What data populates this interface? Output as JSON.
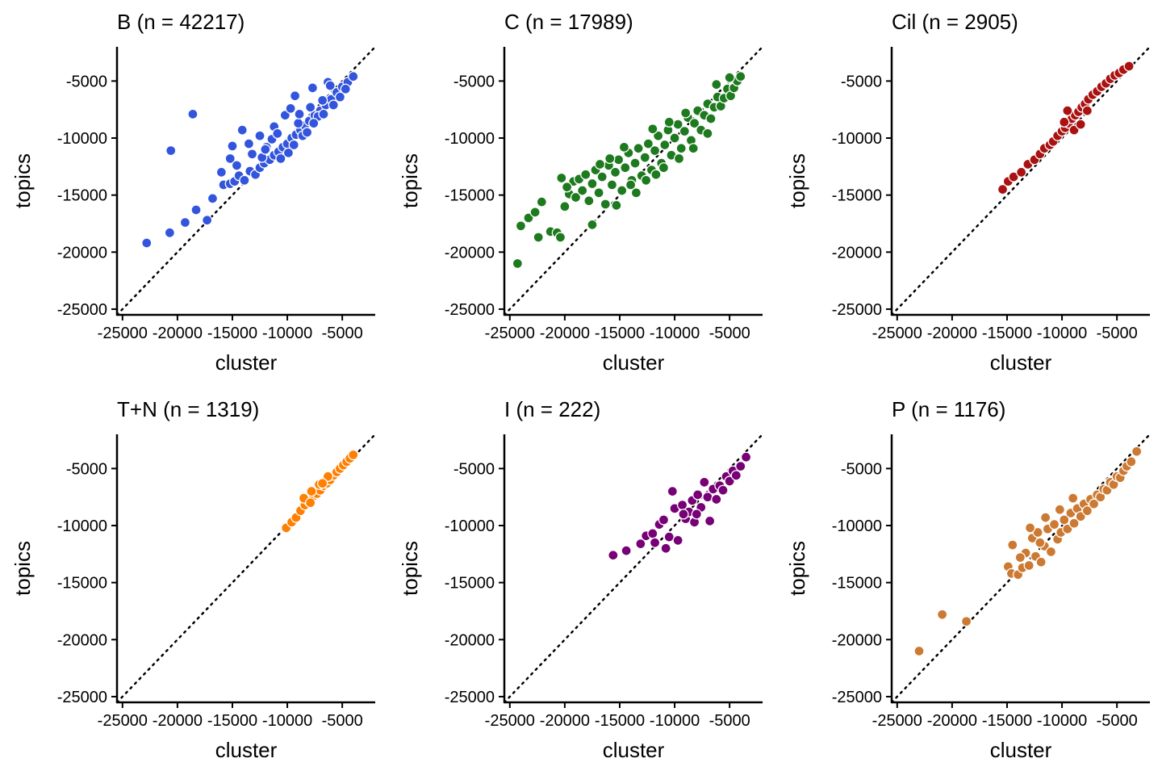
{
  "figure": {
    "background": "#ffffff",
    "point_outline": "#ffffff",
    "reference_line": "dotted identity line (y = x)"
  },
  "chart_data": [
    {
      "type": "scatter",
      "title": "B (n = 42217)",
      "xlabel": "cluster",
      "ylabel": "topics",
      "xlim": [
        -25500,
        -2000
      ],
      "ylim": [
        -25500,
        -2000
      ],
      "xticks": [
        -25000,
        -20000,
        -15000,
        -10000,
        -5000
      ],
      "yticks": [
        -25000,
        -20000,
        -15000,
        -10000,
        -5000
      ],
      "color": "#3355dd",
      "points": [
        [
          -22800,
          -19200
        ],
        [
          -20700,
          -18300
        ],
        [
          -19300,
          -17400
        ],
        [
          -18300,
          -16300
        ],
        [
          -17300,
          -17200
        ],
        [
          -16800,
          -15300
        ],
        [
          -15800,
          -14100
        ],
        [
          -15200,
          -14000
        ],
        [
          -14800,
          -13800
        ],
        [
          -14400,
          -13300
        ],
        [
          -13900,
          -13700
        ],
        [
          -13400,
          -12900
        ],
        [
          -12900,
          -13200
        ],
        [
          -12500,
          -12600
        ],
        [
          -12100,
          -12200
        ],
        [
          -11600,
          -11900
        ],
        [
          -11200,
          -11500
        ],
        [
          -10800,
          -11200
        ],
        [
          -10400,
          -10800
        ],
        [
          -10000,
          -10500
        ],
        [
          -9600,
          -10000
        ],
        [
          -9200,
          -9700
        ],
        [
          -8800,
          -9300
        ],
        [
          -8400,
          -8900
        ],
        [
          -8000,
          -8500
        ],
        [
          -7500,
          -8000
        ],
        [
          -7000,
          -7600
        ],
        [
          -6500,
          -7100
        ],
        [
          -6000,
          -6600
        ],
        [
          -5500,
          -6000
        ],
        [
          -5000,
          -5500
        ],
        [
          -4500,
          -5100
        ],
        [
          -4000,
          -4600
        ],
        [
          -20600,
          -11100
        ],
        [
          -18600,
          -7900
        ],
        [
          -14100,
          -9300
        ],
        [
          -15000,
          -10700
        ],
        [
          -15200,
          -11800
        ],
        [
          -13500,
          -10500
        ],
        [
          -12500,
          -9800
        ],
        [
          -11200,
          -9000
        ],
        [
          -10200,
          -8000
        ],
        [
          -9700,
          -7400
        ],
        [
          -9300,
          -6300
        ],
        [
          -7700,
          -5600
        ],
        [
          -6300,
          -5100
        ],
        [
          -9000,
          -8700
        ],
        [
          -8600,
          -9800
        ],
        [
          -7900,
          -7300
        ],
        [
          -7200,
          -8100
        ],
        [
          -6800,
          -6700
        ],
        [
          -11900,
          -10800
        ],
        [
          -11400,
          -10100
        ],
        [
          -10900,
          -9600
        ],
        [
          -13200,
          -11400
        ],
        [
          -12300,
          -11700
        ],
        [
          -10600,
          -11800
        ],
        [
          -9900,
          -11300
        ],
        [
          -9400,
          -10600
        ],
        [
          -8200,
          -9500
        ],
        [
          -7600,
          -8700
        ],
        [
          -6700,
          -7900
        ],
        [
          -5800,
          -7100
        ],
        [
          -5200,
          -6400
        ],
        [
          -4700,
          -5700
        ],
        [
          -14600,
          -12400
        ],
        [
          -16000,
          -13000
        ],
        [
          -12000,
          -11000
        ],
        [
          -8900,
          -7900
        ],
        [
          -6100,
          -5400
        ]
      ]
    },
    {
      "type": "scatter",
      "title": "C (n = 17989)",
      "xlabel": "cluster",
      "ylabel": "topics",
      "xlim": [
        -25500,
        -2000
      ],
      "ylim": [
        -25500,
        -2000
      ],
      "xticks": [
        -25000,
        -20000,
        -15000,
        -10000,
        -5000
      ],
      "yticks": [
        -25000,
        -20000,
        -15000,
        -10000,
        -5000
      ],
      "color": "#1e7a1e",
      "points": [
        [
          -24300,
          -21000
        ],
        [
          -24000,
          -17700
        ],
        [
          -23300,
          -17000
        ],
        [
          -22700,
          -16500
        ],
        [
          -22400,
          -18700
        ],
        [
          -22100,
          -15600
        ],
        [
          -21300,
          -18200
        ],
        [
          -20700,
          -18300
        ],
        [
          -20400,
          -18700
        ],
        [
          -20000,
          -16000
        ],
        [
          -19600,
          -14900
        ],
        [
          -19200,
          -13800
        ],
        [
          -19000,
          -15200
        ],
        [
          -18700,
          -13600
        ],
        [
          -18400,
          -14600
        ],
        [
          -18100,
          -13200
        ],
        [
          -17800,
          -15500
        ],
        [
          -17500,
          -14000
        ],
        [
          -17200,
          -12800
        ],
        [
          -16900,
          -14800
        ],
        [
          -16600,
          -13400
        ],
        [
          -16300,
          -15800
        ],
        [
          -16000,
          -12400
        ],
        [
          -15700,
          -14100
        ],
        [
          -15400,
          -13000
        ],
        [
          -15100,
          -11900
        ],
        [
          -14800,
          -14600
        ],
        [
          -14500,
          -12600
        ],
        [
          -14200,
          -11300
        ],
        [
          -13900,
          -13700
        ],
        [
          -13600,
          -12200
        ],
        [
          -13300,
          -10900
        ],
        [
          -13000,
          -13300
        ],
        [
          -12700,
          -11700
        ],
        [
          -12400,
          -10500
        ],
        [
          -12100,
          -12800
        ],
        [
          -11800,
          -11100
        ],
        [
          -11500,
          -9800
        ],
        [
          -11200,
          -12200
        ],
        [
          -10900,
          -10600
        ],
        [
          -10600,
          -9300
        ],
        [
          -10300,
          -11500
        ],
        [
          -10000,
          -10000
        ],
        [
          -9700,
          -8800
        ],
        [
          -9400,
          -10900
        ],
        [
          -9100,
          -9400
        ],
        [
          -8800,
          -8200
        ],
        [
          -8500,
          -10200
        ],
        [
          -8200,
          -8700
        ],
        [
          -7900,
          -7600
        ],
        [
          -7600,
          -9300
        ],
        [
          -7300,
          -8000
        ],
        [
          -7000,
          -7000
        ],
        [
          -6700,
          -8300
        ],
        [
          -6400,
          -7300
        ],
        [
          -6100,
          -6400
        ],
        [
          -5800,
          -7200
        ],
        [
          -5500,
          -6500
        ],
        [
          -5200,
          -5700
        ],
        [
          -4900,
          -6300
        ],
        [
          -4600,
          -5600
        ],
        [
          -4300,
          -5000
        ],
        [
          -4000,
          -4600
        ],
        [
          -17500,
          -17600
        ],
        [
          -15300,
          -15900
        ],
        [
          -14000,
          -14100
        ],
        [
          -12600,
          -13700
        ],
        [
          -11000,
          -12600
        ],
        [
          -9600,
          -11800
        ],
        [
          -8300,
          -10900
        ],
        [
          -7000,
          -9600
        ],
        [
          -12000,
          -9200
        ],
        [
          -10500,
          -8600
        ],
        [
          -9000,
          -7800
        ],
        [
          -20300,
          -13500
        ],
        [
          -19800,
          -14300
        ],
        [
          -15900,
          -11800
        ],
        [
          -13500,
          -14800
        ],
        [
          -11700,
          -13200
        ],
        [
          -16800,
          -12300
        ],
        [
          -14600,
          -10800
        ],
        [
          -6200,
          -5300
        ],
        [
          -5000,
          -4700
        ]
      ]
    },
    {
      "type": "scatter",
      "title": "Cil (n = 2905)",
      "xlabel": "cluster",
      "ylabel": "topics",
      "xlim": [
        -25500,
        -2000
      ],
      "ylim": [
        -25500,
        -2000
      ],
      "xticks": [
        -25000,
        -20000,
        -15000,
        -10000,
        -5000
      ],
      "yticks": [
        -25000,
        -20000,
        -15000,
        -10000,
        -5000
      ],
      "color": "#aa1111",
      "points": [
        [
          -15400,
          -14500
        ],
        [
          -14900,
          -13800
        ],
        [
          -14400,
          -13400
        ],
        [
          -13700,
          -13000
        ],
        [
          -13100,
          -12300
        ],
        [
          -12500,
          -11900
        ],
        [
          -12000,
          -11400
        ],
        [
          -11600,
          -10900
        ],
        [
          -11100,
          -10600
        ],
        [
          -10800,
          -10300
        ],
        [
          -10400,
          -9800
        ],
        [
          -10000,
          -9400
        ],
        [
          -9700,
          -9100
        ],
        [
          -9400,
          -8700
        ],
        [
          -9100,
          -8300
        ],
        [
          -8800,
          -8000
        ],
        [
          -8500,
          -7700
        ],
        [
          -8200,
          -7300
        ],
        [
          -7900,
          -7000
        ],
        [
          -7600,
          -6600
        ],
        [
          -7200,
          -6200
        ],
        [
          -6800,
          -5900
        ],
        [
          -6400,
          -5500
        ],
        [
          -6000,
          -5200
        ],
        [
          -5600,
          -4800
        ],
        [
          -5200,
          -4500
        ],
        [
          -4800,
          -4300
        ],
        [
          -4400,
          -4000
        ],
        [
          -3900,
          -3700
        ],
        [
          -9500,
          -7600
        ],
        [
          -8900,
          -9300
        ],
        [
          -9800,
          -8600
        ],
        [
          -8300,
          -8800
        ],
        [
          -7700,
          -7600
        ]
      ]
    },
    {
      "type": "scatter",
      "title": "T+N (n = 1319)",
      "xlabel": "cluster",
      "ylabel": "topics",
      "xlim": [
        -25500,
        -2000
      ],
      "ylim": [
        -25500,
        -2000
      ],
      "xticks": [
        -25000,
        -20000,
        -15000,
        -10000,
        -5000
      ],
      "yticks": [
        -25000,
        -20000,
        -15000,
        -10000,
        -5000
      ],
      "color": "#ff7f00",
      "points": [
        [
          -10100,
          -10200
        ],
        [
          -9600,
          -9700
        ],
        [
          -9200,
          -9300
        ],
        [
          -8800,
          -8700
        ],
        [
          -8400,
          -8200
        ],
        [
          -8000,
          -7900
        ],
        [
          -7600,
          -7400
        ],
        [
          -7300,
          -7200
        ],
        [
          -7000,
          -6900
        ],
        [
          -6700,
          -6500
        ],
        [
          -6400,
          -6300
        ],
        [
          -6100,
          -6000
        ],
        [
          -5800,
          -5600
        ],
        [
          -5500,
          -5300
        ],
        [
          -5200,
          -5000
        ],
        [
          -4900,
          -4700
        ],
        [
          -4600,
          -4400
        ],
        [
          -4300,
          -4100
        ],
        [
          -4000,
          -3800
        ],
        [
          -8500,
          -7600
        ],
        [
          -7800,
          -7000
        ],
        [
          -7100,
          -6400
        ],
        [
          -6300,
          -5700
        ],
        [
          -7900,
          -8000
        ],
        [
          -6800,
          -6300
        ]
      ]
    },
    {
      "type": "scatter",
      "title": "I (n = 222)",
      "xlabel": "cluster",
      "ylabel": "topics",
      "xlim": [
        -25500,
        -2000
      ],
      "ylim": [
        -25500,
        -2000
      ],
      "xticks": [
        -25000,
        -20000,
        -15000,
        -10000,
        -5000
      ],
      "yticks": [
        -25000,
        -20000,
        -15000,
        -10000,
        -5000
      ],
      "color": "#770077",
      "points": [
        [
          -15600,
          -12600
        ],
        [
          -14400,
          -12200
        ],
        [
          -13100,
          -11600
        ],
        [
          -12600,
          -10900
        ],
        [
          -12000,
          -10700
        ],
        [
          -11800,
          -11500
        ],
        [
          -11400,
          -9900
        ],
        [
          -11000,
          -9500
        ],
        [
          -10800,
          -12000
        ],
        [
          -10500,
          -11000
        ],
        [
          -10200,
          -7000
        ],
        [
          -10000,
          -8500
        ],
        [
          -9700,
          -11300
        ],
        [
          -9300,
          -8200
        ],
        [
          -9000,
          -9400
        ],
        [
          -8700,
          -8800
        ],
        [
          -8400,
          -7800
        ],
        [
          -8200,
          -9700
        ],
        [
          -7900,
          -7300
        ],
        [
          -7600,
          -8400
        ],
        [
          -7300,
          -6200
        ],
        [
          -7000,
          -7500
        ],
        [
          -6800,
          -9600
        ],
        [
          -6500,
          -6800
        ],
        [
          -6200,
          -7700
        ],
        [
          -5900,
          -6500
        ],
        [
          -5600,
          -6900
        ],
        [
          -5300,
          -5700
        ],
        [
          -5000,
          -6100
        ],
        [
          -4700,
          -5200
        ],
        [
          -4400,
          -5600
        ],
        [
          -4000,
          -4800
        ],
        [
          -3500,
          -4000
        ],
        [
          -8000,
          -9000
        ],
        [
          -9200,
          -9000
        ]
      ]
    },
    {
      "type": "scatter",
      "title": "P (n = 1176)",
      "xlabel": "cluster",
      "ylabel": "topics",
      "xlim": [
        -25500,
        -2000
      ],
      "ylim": [
        -25500,
        -2000
      ],
      "xticks": [
        -25000,
        -20000,
        -15000,
        -10000,
        -5000
      ],
      "yticks": [
        -25000,
        -20000,
        -15000,
        -10000,
        -5000
      ],
      "color": "#cc7a33",
      "points": [
        [
          -23000,
          -21000
        ],
        [
          -20900,
          -17800
        ],
        [
          -18700,
          -18400
        ],
        [
          -14900,
          -13600
        ],
        [
          -14600,
          -14200
        ],
        [
          -14500,
          -11700
        ],
        [
          -14000,
          -14300
        ],
        [
          -13600,
          -13700
        ],
        [
          -13300,
          -12400
        ],
        [
          -13000,
          -13500
        ],
        [
          -12700,
          -11100
        ],
        [
          -12400,
          -12700
        ],
        [
          -12200,
          -10600
        ],
        [
          -11900,
          -13200
        ],
        [
          -11600,
          -11800
        ],
        [
          -11300,
          -10300
        ],
        [
          -11000,
          -12300
        ],
        [
          -10700,
          -9900
        ],
        [
          -10400,
          -11200
        ],
        [
          -10100,
          -10600
        ],
        [
          -9800,
          -9500
        ],
        [
          -9500,
          -10300
        ],
        [
          -9200,
          -8900
        ],
        [
          -8900,
          -9800
        ],
        [
          -8600,
          -8500
        ],
        [
          -8300,
          -9200
        ],
        [
          -8000,
          -8100
        ],
        [
          -7700,
          -8700
        ],
        [
          -7400,
          -7700
        ],
        [
          -7100,
          -8100
        ],
        [
          -6800,
          -7300
        ],
        [
          -6500,
          -7500
        ],
        [
          -6200,
          -6800
        ],
        [
          -5900,
          -6900
        ],
        [
          -5600,
          -6200
        ],
        [
          -5300,
          -6400
        ],
        [
          -5000,
          -5700
        ],
        [
          -4700,
          -5800
        ],
        [
          -4400,
          -5200
        ],
        [
          -4100,
          -4800
        ],
        [
          -3700,
          -4400
        ],
        [
          -3200,
          -3500
        ],
        [
          -12900,
          -10200
        ],
        [
          -11500,
          -9300
        ],
        [
          -10200,
          -8600
        ],
        [
          -12000,
          -11500
        ],
        [
          -9000,
          -7600
        ],
        [
          -13800,
          -12800
        ]
      ]
    }
  ]
}
